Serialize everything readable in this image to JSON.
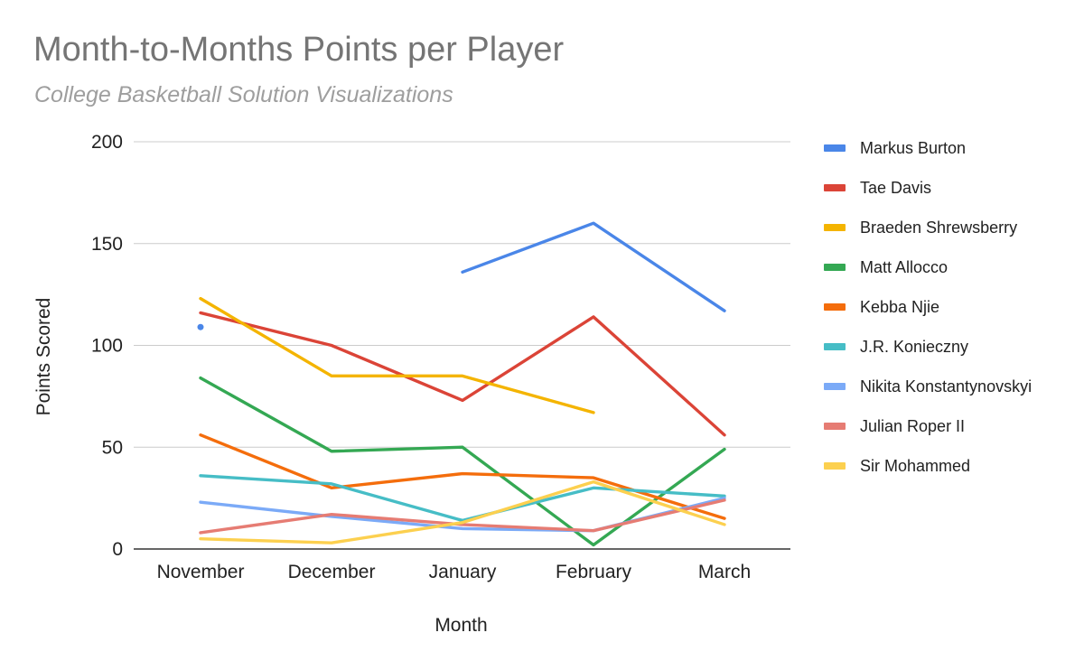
{
  "chart_data": {
    "type": "line",
    "title": "Month-to-Months Points per Player",
    "subtitle": "College Basketball Solution Visualizations",
    "xlabel": "Month",
    "ylabel": "Points Scored",
    "categories": [
      "November",
      "December",
      "January",
      "February",
      "March"
    ],
    "ylim": [
      0,
      200
    ],
    "yticks": [
      0,
      50,
      100,
      150,
      200
    ],
    "grid": true,
    "legend_position": "right",
    "series": [
      {
        "name": "Markus Burton",
        "color": "#4a86e8",
        "values": [
          109,
          null,
          136,
          160,
          117
        ]
      },
      {
        "name": "Tae Davis",
        "color": "#db4437",
        "values": [
          116,
          100,
          73,
          114,
          56
        ]
      },
      {
        "name": "Braeden Shrewsberry",
        "color": "#f4b400",
        "values": [
          123,
          85,
          85,
          67,
          null
        ]
      },
      {
        "name": "Matt Allocco",
        "color": "#34a853",
        "values": [
          84,
          48,
          50,
          2,
          49
        ]
      },
      {
        "name": "Kebba Njie",
        "color": "#f46d0c",
        "values": [
          56,
          30,
          37,
          35,
          15
        ]
      },
      {
        "name": "J.R. Konieczny",
        "color": "#46bdc6",
        "values": [
          36,
          32,
          14,
          30,
          26
        ]
      },
      {
        "name": "Nikita Konstantynovskyi",
        "color": "#7baaf7",
        "values": [
          23,
          16,
          10,
          9,
          25
        ]
      },
      {
        "name": "Julian Roper II",
        "color": "#e67c73",
        "values": [
          8,
          17,
          12,
          9,
          24
        ]
      },
      {
        "name": "Sir Mohammed",
        "color": "#fcd04f",
        "values": [
          5,
          3,
          13,
          33,
          12
        ]
      }
    ]
  }
}
